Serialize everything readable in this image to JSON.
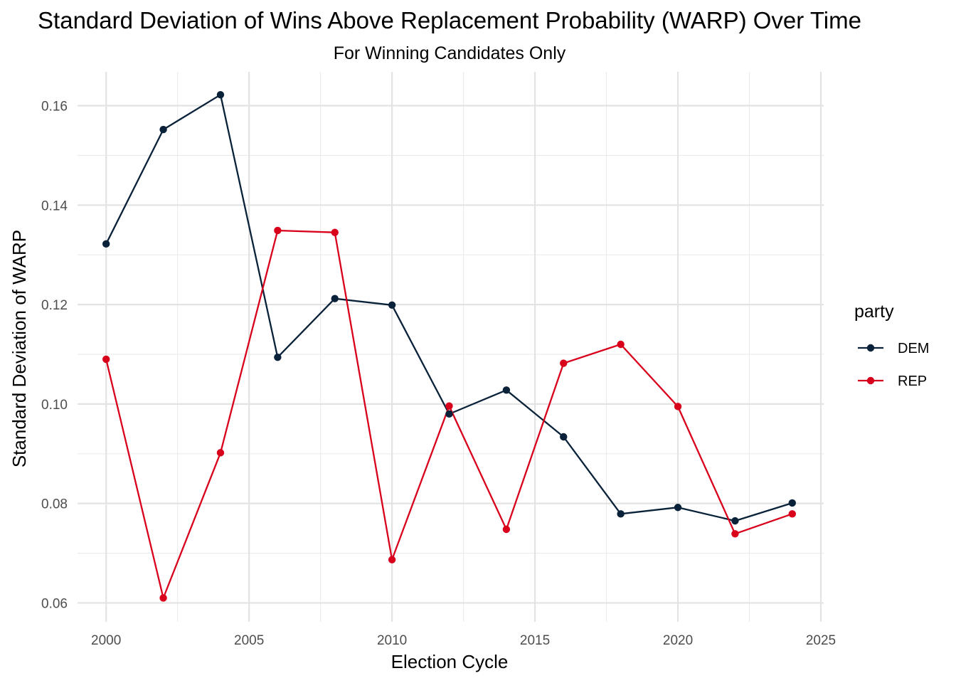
{
  "chart_data": {
    "type": "line",
    "title": "Standard Deviation of Wins Above Replacement Probability (WARP) Over Time",
    "subtitle": "For Winning Candidates Only",
    "xlabel": "Election Cycle",
    "ylabel": "Standard Deviation of WARP",
    "x": [
      2000,
      2002,
      2004,
      2006,
      2008,
      2010,
      2012,
      2014,
      2016,
      2018,
      2020,
      2022,
      2024
    ],
    "xlim": [
      1999,
      2025.1
    ],
    "ylim": [
      0.0562,
      0.1668
    ],
    "x_ticks": [
      "2000",
      "2005",
      "2010",
      "2015",
      "2020",
      "2025"
    ],
    "y_ticks": [
      "0.06",
      "0.08",
      "0.10",
      "0.12",
      "0.14",
      "0.16"
    ],
    "x_tick_values": [
      2000,
      2005,
      2010,
      2015,
      2020,
      2025
    ],
    "y_tick_values": [
      0.06,
      0.08,
      0.1,
      0.12,
      0.14,
      0.16
    ],
    "grid": true,
    "legend_position": "right",
    "legend_title": "party",
    "series": [
      {
        "name": "DEM",
        "color": "#0a2239",
        "values": [
          0.1322,
          0.1552,
          0.1622,
          0.1094,
          0.1212,
          0.1199,
          0.098,
          0.1028,
          0.0934,
          0.0779,
          0.0792,
          0.0765,
          0.0801
        ]
      },
      {
        "name": "REP",
        "color": "#d9001b",
        "values": [
          0.109,
          0.061,
          0.0902,
          0.1349,
          0.1345,
          0.0687,
          0.0996,
          0.0748,
          0.1082,
          0.112,
          0.0995,
          0.0739,
          0.0779
        ]
      }
    ]
  }
}
